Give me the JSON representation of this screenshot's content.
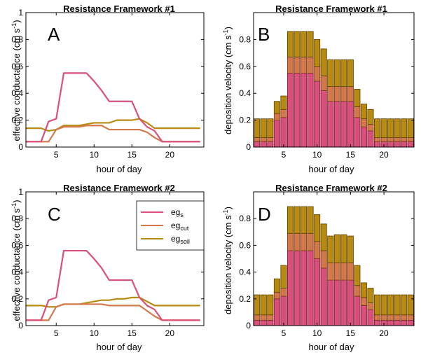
{
  "colors": {
    "gs": "#d9507a",
    "cut": "#d2784a",
    "soil": "#b88a12",
    "soil_edge": "#5a4200",
    "cut_edge": "#7a3a1a",
    "gs_edge": "#7a1a3a"
  },
  "legend": {
    "entries": [
      {
        "base": "eg",
        "sub": "s",
        "color": "#d9507a"
      },
      {
        "base": "eg",
        "sub": "cut",
        "color": "#d2784a"
      },
      {
        "base": "eg",
        "sub": "soil",
        "color": "#b88a12"
      }
    ]
  },
  "chart_data": [
    {
      "id": "A",
      "type": "line",
      "panel_letter": "A",
      "title": "Resistance Framework #1",
      "xlabel": "hour of day",
      "ylabel_main": "effective conductance (cm s",
      "ylabel_exp": "-1",
      "ylabel_end": ")",
      "xlim": [
        1,
        24.5
      ],
      "ylim": [
        0,
        1
      ],
      "xticks": [
        5,
        10,
        15,
        20
      ],
      "yticks": [
        0,
        0.2,
        0.4,
        0.6,
        0.8,
        1
      ],
      "ytick_labels": [
        "0",
        "0.2",
        "0.4",
        "0.6",
        "0.8",
        "1"
      ],
      "x": [
        1,
        2,
        3,
        4,
        5,
        6,
        7,
        8,
        9,
        10,
        11,
        12,
        13,
        14,
        15,
        16,
        17,
        18,
        19,
        20,
        21,
        22,
        23,
        24
      ],
      "series": [
        {
          "key": "gs",
          "values": [
            0.04,
            0.04,
            0.04,
            0.19,
            0.21,
            0.55,
            0.55,
            0.55,
            0.55,
            0.49,
            0.42,
            0.34,
            0.34,
            0.34,
            0.34,
            0.21,
            0.15,
            0.12,
            0.04,
            0.04,
            0.04,
            0.04,
            0.04,
            0.04
          ]
        },
        {
          "key": "cut",
          "values": [
            0.04,
            0.04,
            0.04,
            0.04,
            0.13,
            0.15,
            0.15,
            0.15,
            0.16,
            0.16,
            0.16,
            0.13,
            0.13,
            0.13,
            0.13,
            0.13,
            0.11,
            0.07,
            0.04,
            0.04,
            0.04,
            0.04,
            0.04,
            0.04
          ]
        },
        {
          "key": "soil",
          "values": [
            0.14,
            0.14,
            0.14,
            0.12,
            0.13,
            0.16,
            0.16,
            0.16,
            0.17,
            0.18,
            0.18,
            0.18,
            0.2,
            0.2,
            0.2,
            0.21,
            0.18,
            0.14,
            0.14,
            0.14,
            0.14,
            0.14,
            0.14,
            0.14
          ]
        }
      ]
    },
    {
      "id": "B",
      "type": "bar",
      "panel_letter": "B",
      "title": "Resistance Framework #1",
      "xlabel": "hour of day",
      "ylabel_main": "deposition velocity (cm s",
      "ylabel_exp": "-1",
      "ylabel_end": ")",
      "xlim": [
        0.5,
        24.5
      ],
      "ylim": [
        0,
        1
      ],
      "xticks": [
        5,
        10,
        15,
        20
      ],
      "yticks": [
        0,
        0.2,
        0.4,
        0.6,
        0.8
      ],
      "ytick_labels": [
        "0",
        "0.2",
        "0.4",
        "0.6",
        "0.8"
      ],
      "x": [
        1,
        2,
        3,
        4,
        5,
        6,
        7,
        8,
        9,
        10,
        11,
        12,
        13,
        14,
        15,
        16,
        17,
        18,
        19,
        20,
        21,
        22,
        23,
        24
      ],
      "stacked": [
        {
          "key": "gs",
          "values": [
            0.04,
            0.04,
            0.04,
            0.2,
            0.22,
            0.55,
            0.55,
            0.55,
            0.55,
            0.49,
            0.42,
            0.34,
            0.34,
            0.34,
            0.34,
            0.22,
            0.15,
            0.12,
            0.04,
            0.04,
            0.04,
            0.04,
            0.04,
            0.04
          ]
        },
        {
          "key": "cut",
          "values": [
            0.03,
            0.03,
            0.03,
            0.05,
            0.06,
            0.12,
            0.12,
            0.12,
            0.12,
            0.11,
            0.11,
            0.11,
            0.11,
            0.11,
            0.11,
            0.08,
            0.06,
            0.05,
            0.03,
            0.03,
            0.03,
            0.03,
            0.03,
            0.03
          ]
        },
        {
          "key": "soil",
          "values": [
            0.14,
            0.14,
            0.14,
            0.09,
            0.1,
            0.19,
            0.19,
            0.19,
            0.19,
            0.2,
            0.2,
            0.2,
            0.2,
            0.2,
            0.2,
            0.13,
            0.11,
            0.11,
            0.14,
            0.14,
            0.14,
            0.14,
            0.14,
            0.14
          ]
        }
      ]
    },
    {
      "id": "C",
      "type": "line",
      "panel_letter": "C",
      "title": "Resistance Framework #2",
      "xlabel": "hour of day",
      "ylabel_main": "effective conductance (cm s",
      "ylabel_exp": "-1",
      "ylabel_end": ")",
      "xlim": [
        1,
        24.5
      ],
      "ylim": [
        0,
        1
      ],
      "xticks": [
        5,
        10,
        15,
        20
      ],
      "yticks": [
        0,
        0.2,
        0.4,
        0.6,
        0.8,
        1
      ],
      "ytick_labels": [
        "0",
        "0.2",
        "0.4",
        "0.6",
        "0.8",
        "1"
      ],
      "x": [
        1,
        2,
        3,
        4,
        5,
        6,
        7,
        8,
        9,
        10,
        11,
        12,
        13,
        14,
        15,
        16,
        17,
        18,
        19,
        20,
        21,
        22,
        23,
        24
      ],
      "series": [
        {
          "key": "gs",
          "values": [
            0.04,
            0.04,
            0.04,
            0.19,
            0.21,
            0.56,
            0.56,
            0.56,
            0.56,
            0.5,
            0.43,
            0.34,
            0.34,
            0.34,
            0.34,
            0.21,
            0.15,
            0.12,
            0.04,
            0.04,
            0.04,
            0.04,
            0.04,
            0.04
          ]
        },
        {
          "key": "cut",
          "values": [
            0.04,
            0.04,
            0.04,
            0.04,
            0.14,
            0.16,
            0.16,
            0.16,
            0.16,
            0.16,
            0.16,
            0.15,
            0.15,
            0.15,
            0.15,
            0.15,
            0.11,
            0.07,
            0.04,
            0.04,
            0.04,
            0.04,
            0.04,
            0.04
          ]
        },
        {
          "key": "soil",
          "values": [
            0.15,
            0.15,
            0.15,
            0.14,
            0.14,
            0.16,
            0.16,
            0.16,
            0.17,
            0.18,
            0.19,
            0.19,
            0.2,
            0.2,
            0.21,
            0.21,
            0.18,
            0.15,
            0.15,
            0.15,
            0.15,
            0.15,
            0.15,
            0.15
          ]
        }
      ]
    },
    {
      "id": "D",
      "type": "bar",
      "panel_letter": "D",
      "title": "Resistance Framework #2",
      "xlabel": "hour of day",
      "ylabel_main": "deposition velocity (cm s",
      "ylabel_exp": "-1",
      "ylabel_end": ")",
      "xlim": [
        0.5,
        24.5
      ],
      "ylim": [
        0,
        1
      ],
      "xticks": [
        5,
        10,
        15,
        20
      ],
      "yticks": [
        0,
        0.2,
        0.4,
        0.6,
        0.8
      ],
      "ytick_labels": [
        "0",
        "0.2",
        "0.4",
        "0.6",
        "0.8"
      ],
      "x": [
        1,
        2,
        3,
        4,
        5,
        6,
        7,
        8,
        9,
        10,
        11,
        12,
        13,
        14,
        15,
        16,
        17,
        18,
        19,
        20,
        21,
        22,
        23,
        24
      ],
      "stacked": [
        {
          "key": "gs",
          "values": [
            0.04,
            0.04,
            0.04,
            0.2,
            0.22,
            0.56,
            0.56,
            0.56,
            0.56,
            0.5,
            0.43,
            0.34,
            0.34,
            0.34,
            0.34,
            0.22,
            0.15,
            0.12,
            0.04,
            0.04,
            0.04,
            0.04,
            0.04,
            0.04
          ]
        },
        {
          "key": "cut",
          "values": [
            0.04,
            0.04,
            0.04,
            0.05,
            0.06,
            0.13,
            0.13,
            0.13,
            0.13,
            0.13,
            0.13,
            0.13,
            0.13,
            0.13,
            0.13,
            0.08,
            0.06,
            0.05,
            0.04,
            0.04,
            0.04,
            0.04,
            0.04,
            0.04
          ]
        },
        {
          "key": "soil",
          "values": [
            0.15,
            0.15,
            0.15,
            0.1,
            0.17,
            0.2,
            0.2,
            0.2,
            0.2,
            0.2,
            0.2,
            0.2,
            0.21,
            0.21,
            0.2,
            0.15,
            0.11,
            0.11,
            0.15,
            0.15,
            0.15,
            0.15,
            0.15,
            0.15
          ]
        }
      ]
    }
  ]
}
